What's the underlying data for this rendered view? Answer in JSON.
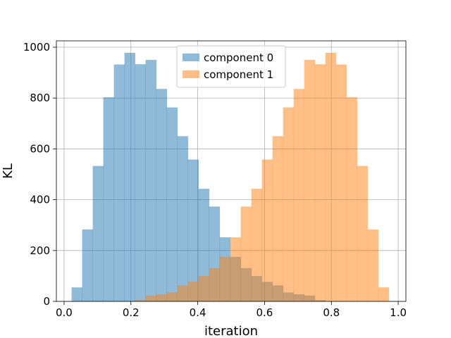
{
  "chart_data": {
    "type": "bar",
    "title": "",
    "xlabel": "iteration",
    "ylabel": "KL",
    "xlim": [
      -0.023,
      1.023
    ],
    "ylim": [
      0,
      1025
    ],
    "grid": true,
    "legend_position": "top-center",
    "x_ticks": [
      {
        "value": 0.0,
        "label": "0.0"
      },
      {
        "value": 0.2,
        "label": "0.2"
      },
      {
        "value": 0.4,
        "label": "0.4"
      },
      {
        "value": 0.6,
        "label": "0.6"
      },
      {
        "value": 0.8,
        "label": "0.8"
      },
      {
        "value": 1.0,
        "label": "1.0"
      }
    ],
    "y_ticks": [
      {
        "value": 0,
        "label": "0"
      },
      {
        "value": 200,
        "label": "200"
      },
      {
        "value": 400,
        "label": "400"
      },
      {
        "value": 600,
        "label": "600"
      },
      {
        "value": 800,
        "label": "800"
      },
      {
        "value": 1000,
        "label": "1000"
      }
    ],
    "bin_edges": [
      0.0225,
      0.0541,
      0.0858,
      0.1174,
      0.1491,
      0.1807,
      0.2124,
      0.244,
      0.2757,
      0.3073,
      0.339,
      0.3706,
      0.4023,
      0.4339,
      0.4656,
      0.4972,
      0.5288,
      0.5605,
      0.5921,
      0.6238,
      0.6554,
      0.6871,
      0.7187,
      0.7504,
      0.782,
      0.8137,
      0.8453,
      0.877,
      0.9086,
      0.9403,
      0.9719
    ],
    "series": [
      {
        "name": "component 0",
        "color": "#1f77b4",
        "opacity": 0.5,
        "values": [
          55,
          283,
          533,
          803,
          932,
          978,
          933,
          950,
          836,
          763,
          650,
          558,
          443,
          373,
          252,
          175,
          131,
          100,
          77,
          63,
          35,
          28,
          23,
          5,
          0,
          0,
          0,
          0,
          0,
          0
        ]
      },
      {
        "name": "component 1",
        "color": "#ff7f0e",
        "opacity": 0.5,
        "values": [
          0,
          0,
          0,
          0,
          0,
          0,
          5,
          23,
          28,
          35,
          63,
          77,
          100,
          131,
          175,
          252,
          373,
          443,
          558,
          650,
          763,
          836,
          950,
          933,
          978,
          932,
          803,
          533,
          283,
          55
        ]
      }
    ]
  }
}
